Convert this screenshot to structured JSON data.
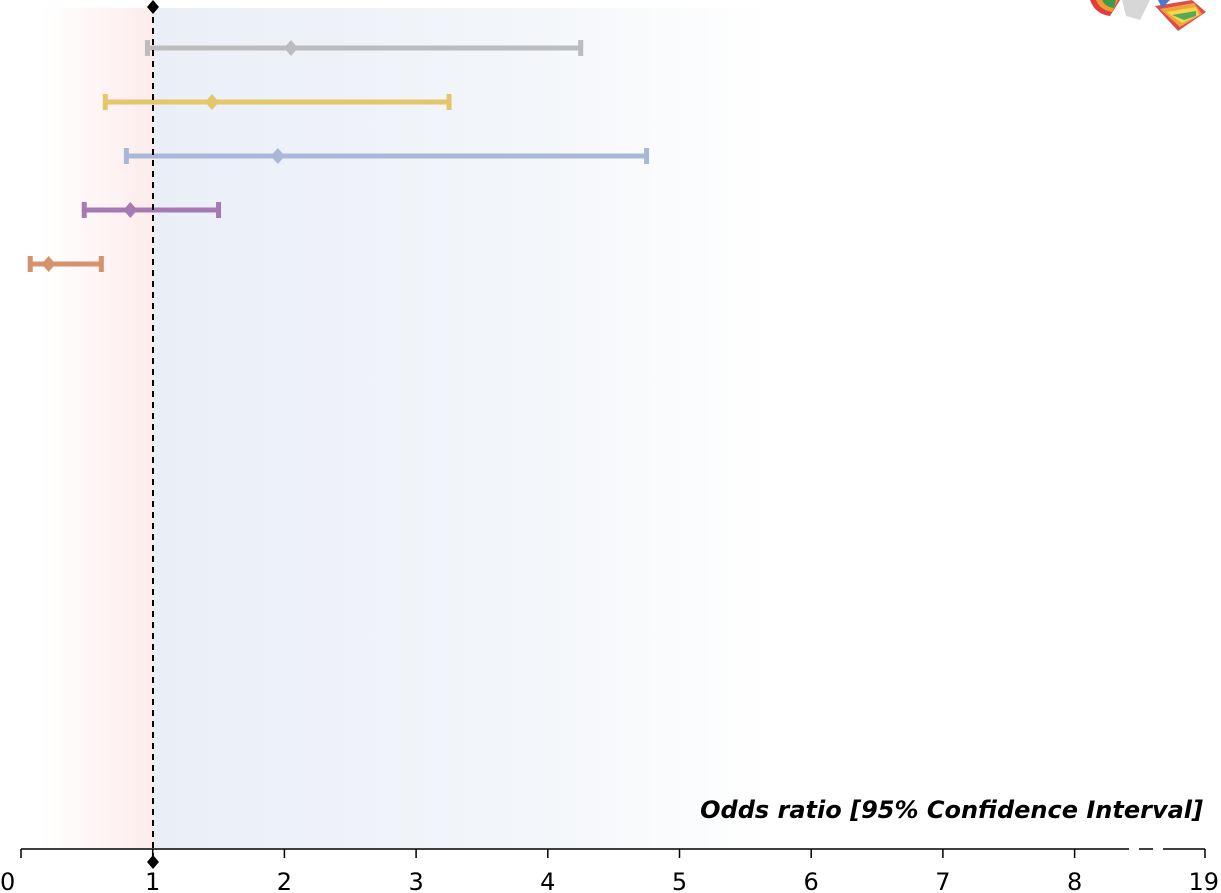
{
  "chart_data": {
    "type": "forest",
    "xlabel": "Odds ratio [95% Confidence Interval]",
    "ticks": [
      {
        "label": "0",
        "value": 0
      },
      {
        "label": "1",
        "value": 1
      },
      {
        "label": "2",
        "value": 2
      },
      {
        "label": "3",
        "value": 3
      },
      {
        "label": "4",
        "value": 4
      },
      {
        "label": "5",
        "value": 5
      },
      {
        "label": "6",
        "value": 6
      },
      {
        "label": "7",
        "value": 7
      },
      {
        "label": "8",
        "value": 8
      },
      {
        "label": "19",
        "value": 19
      }
    ],
    "axis_break": "between 8 and 19",
    "reference_line": 1,
    "series": [
      {
        "or": 2.05,
        "ci": [
          0.96,
          4.25
        ],
        "color": "#bcbcbe"
      },
      {
        "or": 1.45,
        "ci": [
          0.64,
          3.25
        ],
        "color": "#e4c66c"
      },
      {
        "or": 1.95,
        "ci": [
          0.8,
          4.75
        ],
        "color": "#a9b7d9"
      },
      {
        "or": 0.83,
        "ci": [
          0.48,
          1.5
        ],
        "color": "#a779b3"
      },
      {
        "or": 0.21,
        "ci": [
          0.07,
          0.61
        ],
        "color": "#d6916d"
      }
    ],
    "colors": {
      "left_band": "#fdeeee",
      "right_band": "#eef2f8",
      "reference": "#000000",
      "axis": "#000000"
    }
  },
  "logo": {
    "icon": "rainbow-ribbon-logo-icon"
  }
}
